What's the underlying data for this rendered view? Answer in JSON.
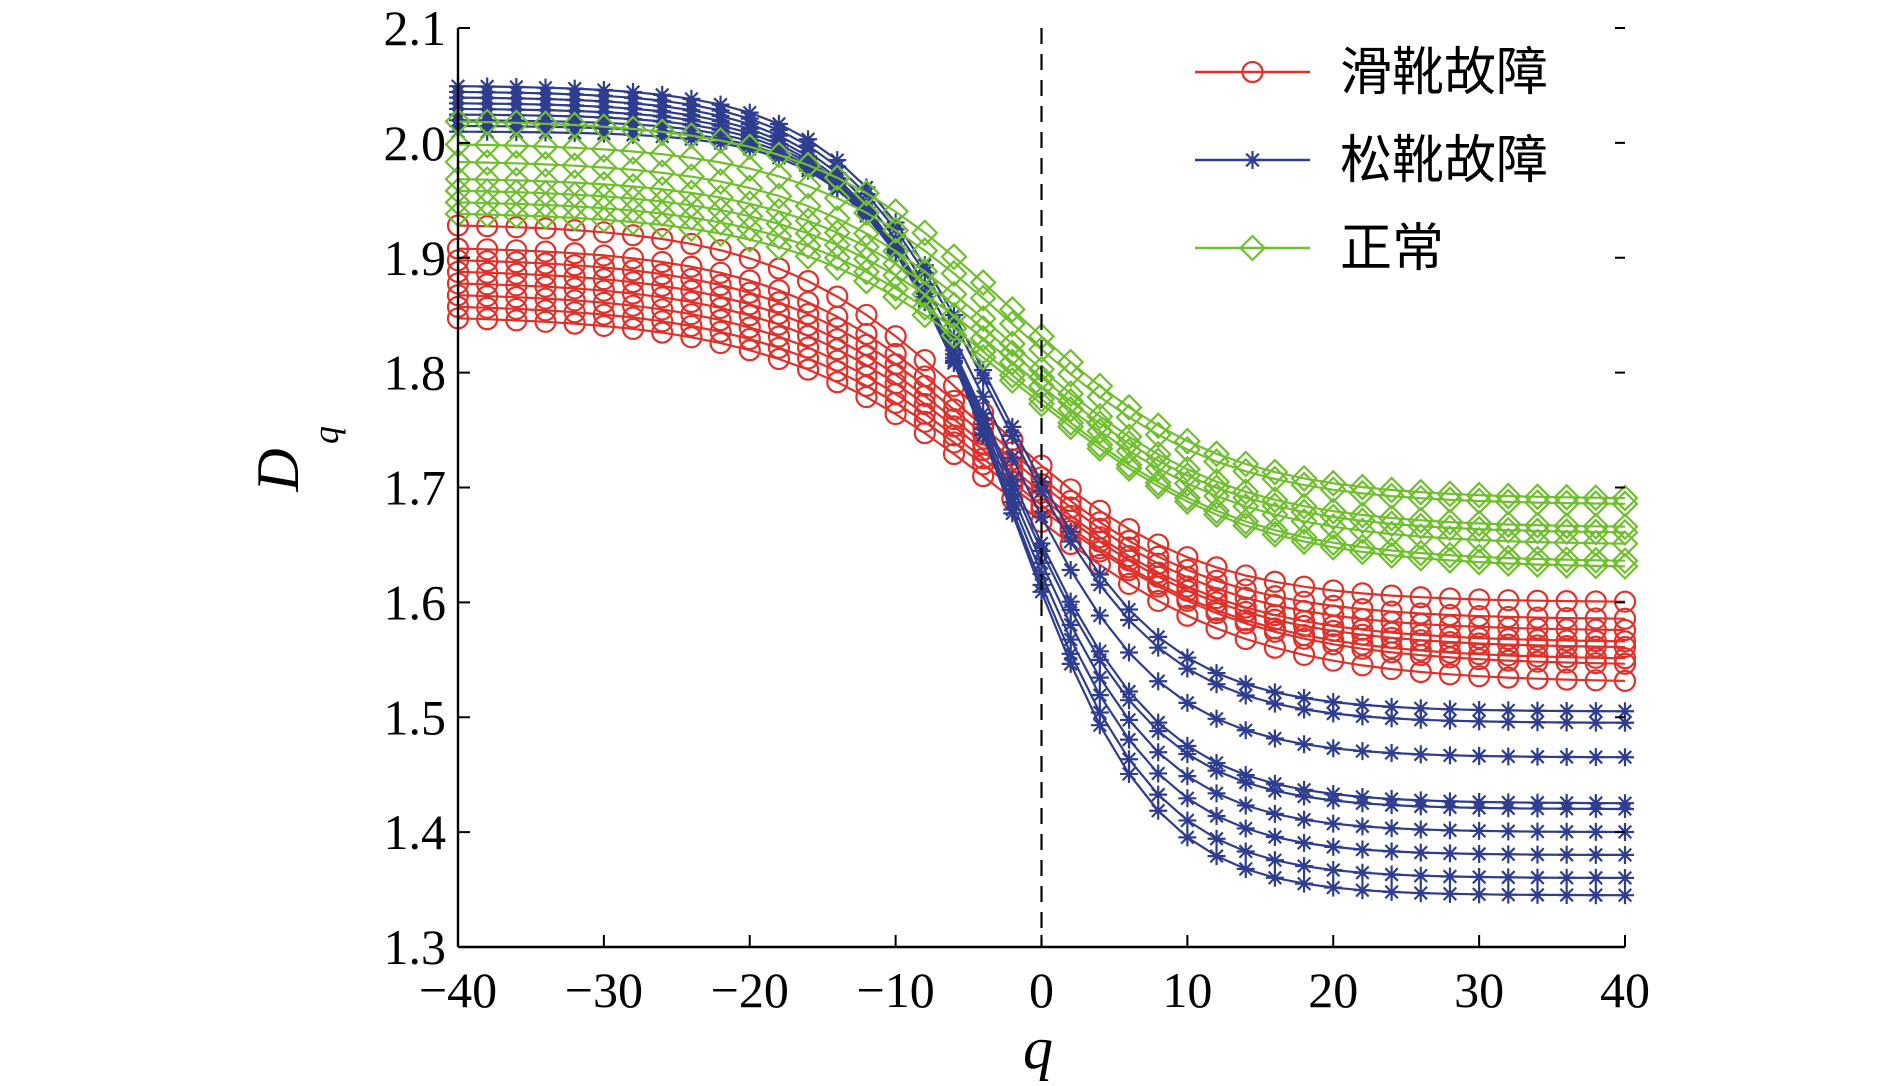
{
  "chart_data": {
    "type": "line",
    "title": "",
    "xlabel": "q",
    "ylabel": "D",
    "ylabel_subscript": "q",
    "xlim": [
      -40,
      40
    ],
    "ylim": [
      1.3,
      2.1
    ],
    "xticks": [
      -40,
      -30,
      -20,
      -10,
      0,
      10,
      20,
      30,
      40
    ],
    "xtick_labels": [
      "−40",
      "−30",
      "−20",
      "−10",
      "0",
      "10",
      "20",
      "30",
      "40"
    ],
    "yticks": [
      1.3,
      1.4,
      1.5,
      1.6,
      1.7,
      1.8,
      1.9,
      2.0,
      2.1
    ],
    "ytick_labels": [
      "1.3",
      "1.4",
      "1.5",
      "1.6",
      "1.7",
      "1.8",
      "1.9",
      "2.0",
      "2.1"
    ],
    "reference_line": {
      "x": 0,
      "style": "dashed"
    },
    "legend_position": "top-right",
    "x": [
      -40,
      -38,
      -36,
      -34,
      -32,
      -30,
      -28,
      -26,
      -24,
      -22,
      -20,
      -18,
      -16,
      -14,
      -12,
      -10,
      -8,
      -6,
      -4,
      -2,
      0,
      2,
      4,
      6,
      8,
      10,
      12,
      14,
      16,
      18,
      20,
      22,
      24,
      26,
      28,
      30,
      32,
      34,
      36,
      38,
      40
    ],
    "groups": [
      {
        "name": "滑靴故障",
        "color": "#e0302a",
        "marker": "circle",
        "curves": [
          {
            "left": 1.93,
            "right": 1.6,
            "center": -4,
            "width": 7.0
          },
          {
            "left": 1.91,
            "right": 1.585,
            "center": -3.5,
            "width": 7.2
          },
          {
            "left": 1.9,
            "right": 1.575,
            "center": -3.2,
            "width": 7.4
          },
          {
            "left": 1.89,
            "right": 1.565,
            "center": -3.0,
            "width": 7.5
          },
          {
            "left": 1.88,
            "right": 1.56,
            "center": -2.8,
            "width": 7.6
          },
          {
            "left": 1.87,
            "right": 1.55,
            "center": -2.5,
            "width": 7.8
          },
          {
            "left": 1.86,
            "right": 1.545,
            "center": -2.2,
            "width": 8.0
          },
          {
            "left": 1.85,
            "right": 1.53,
            "center": -2.0,
            "width": 8.0
          }
        ]
      },
      {
        "name": "松靴故障",
        "color": "#2e3d8f",
        "marker": "star",
        "curves": [
          {
            "left": 2.05,
            "right": 1.505,
            "center": -3,
            "width": 5.5
          },
          {
            "left": 2.045,
            "right": 1.495,
            "center": -3,
            "width": 5.5
          },
          {
            "left": 2.04,
            "right": 1.465,
            "center": -3,
            "width": 5.4
          },
          {
            "left": 2.035,
            "right": 1.425,
            "center": -2.8,
            "width": 5.3
          },
          {
            "left": 2.03,
            "right": 1.42,
            "center": -2.8,
            "width": 5.2
          },
          {
            "left": 2.025,
            "right": 1.4,
            "center": -2.6,
            "width": 5.1
          },
          {
            "left": 2.02,
            "right": 1.38,
            "center": -2.4,
            "width": 5.0
          },
          {
            "left": 2.015,
            "right": 1.36,
            "center": -2.2,
            "width": 4.9
          },
          {
            "left": 2.01,
            "right": 1.345,
            "center": -2.0,
            "width": 4.8
          }
        ]
      },
      {
        "name": "正常",
        "color": "#6fbf2e",
        "marker": "diamond",
        "curves": [
          {
            "left": 2.02,
            "right": 1.69,
            "center": -2,
            "width": 7.0
          },
          {
            "left": 2.0,
            "right": 1.685,
            "center": -2,
            "width": 7.0
          },
          {
            "left": 1.985,
            "right": 1.665,
            "center": -2,
            "width": 7.2
          },
          {
            "left": 1.97,
            "right": 1.66,
            "center": -1.8,
            "width": 7.2
          },
          {
            "left": 1.96,
            "right": 1.65,
            "center": -1.6,
            "width": 7.4
          },
          {
            "left": 1.95,
            "right": 1.635,
            "center": -1.5,
            "width": 7.5
          },
          {
            "left": 1.94,
            "right": 1.63,
            "center": -1.2,
            "width": 7.6
          }
        ]
      }
    ]
  },
  "legend": {
    "items": [
      {
        "label": "滑靴故障",
        "color": "#e0302a",
        "marker": "circle"
      },
      {
        "label": "松靴故障",
        "color": "#2e3d8f",
        "marker": "star"
      },
      {
        "label": "正常",
        "color": "#6fbf2e",
        "marker": "diamond"
      }
    ]
  }
}
